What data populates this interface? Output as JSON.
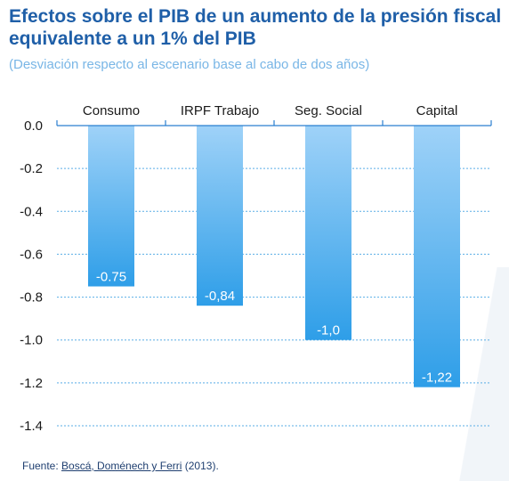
{
  "title": "Efectos sobre el PIB de un aumento de la presión fiscal equivalente a un 1% del PIB",
  "subtitle": "(Desviación respecto al escenario base al cabo de dos años)",
  "source": {
    "prefix": "Fuente: ",
    "link": "Boscá, Doménech y Ferri",
    "suffix": " (2013)."
  },
  "colors": {
    "title": "#1f5fa8",
    "subtitle": "#79b6e6",
    "bar_top": "#9fd2f8",
    "bar_bottom": "#2e9ee8",
    "grid": "#5aaee6",
    "axis": "#2a7fd0"
  },
  "chart_data": {
    "type": "bar",
    "categories": [
      "Consumo",
      "IRPF Trabajo",
      "Seg. Social",
      "Capital"
    ],
    "values": [
      -0.75,
      -0.84,
      -1.0,
      -1.22
    ],
    "value_labels": [
      "-0.75",
      "-0,84",
      "-1,0",
      "-1,22"
    ],
    "y_ticks": [
      "0.0",
      "-0.2",
      "-0.4",
      "-0.6",
      "-0.8",
      "-1.0",
      "-1.2",
      "-1.4"
    ],
    "ylim": [
      -1.4,
      0
    ],
    "grid": true,
    "category_labels_position": "top"
  }
}
